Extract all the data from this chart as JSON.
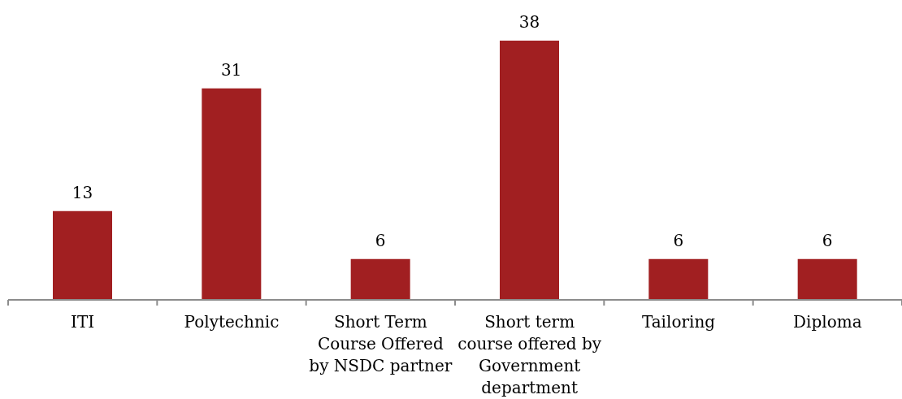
{
  "chart_data": {
    "type": "bar",
    "categories": [
      "ITI",
      "Polytechnic",
      "Short Term Course Offered by NSDC partner",
      "Short term course offered by Government department",
      "Tailoring",
      "Diploma"
    ],
    "values": [
      13,
      31,
      6,
      38,
      6,
      6
    ],
    "color": "#a11f21",
    "data_labels": true
  }
}
